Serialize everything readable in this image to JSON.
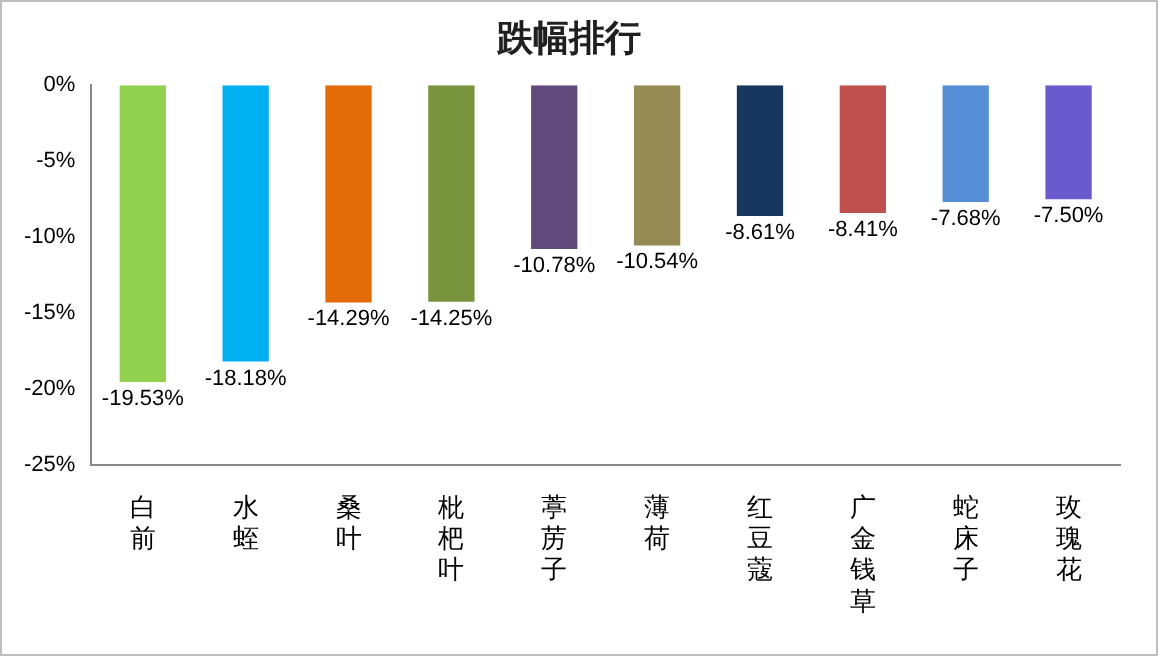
{
  "chart_data": {
    "type": "bar",
    "title": "跌幅排行",
    "categories": [
      "白前",
      "水蛭",
      "桑叶",
      "枇杷叶",
      "葶苈子",
      "薄荷",
      "红豆蔻",
      "广金钱草",
      "蛇床子",
      "玫瑰花"
    ],
    "values": [
      -19.53,
      -18.18,
      -14.29,
      -14.25,
      -10.78,
      -10.54,
      -8.61,
      -8.41,
      -7.68,
      -7.5
    ],
    "value_labels": [
      "-19.53%",
      "-18.18%",
      "-14.29%",
      "-14.25%",
      "-10.78%",
      "-10.54%",
      "-8.61%",
      "-8.41%",
      "-7.68%",
      "-7.50%"
    ],
    "colors": [
      "#92d050",
      "#00b0f0",
      "#e36c09",
      "#77933c",
      "#604a7b",
      "#948a54",
      "#17375e",
      "#c0504d",
      "#558ed5",
      "#6a5acd"
    ],
    "ylim": [
      -25,
      0
    ],
    "yticks": [
      {
        "value": 0,
        "label": "0%"
      },
      {
        "value": -5,
        "label": "-5%"
      },
      {
        "value": -10,
        "label": "-10%"
      },
      {
        "value": -15,
        "label": "-15%"
      },
      {
        "value": -20,
        "label": "-20%"
      },
      {
        "value": -25,
        "label": "-25%"
      }
    ],
    "grid": false,
    "legend": false
  }
}
